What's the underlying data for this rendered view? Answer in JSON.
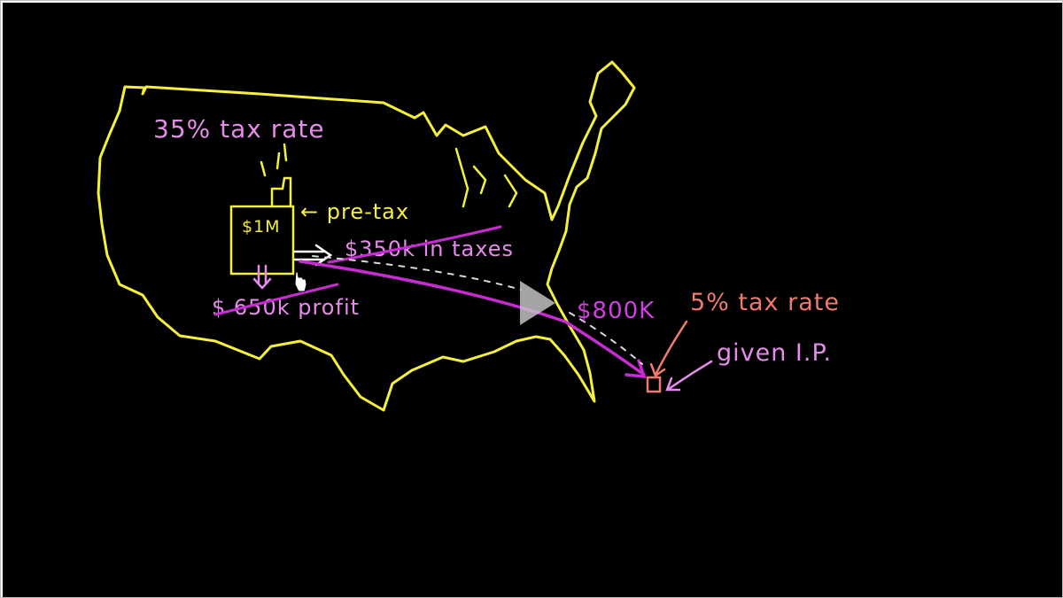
{
  "video": {
    "control": {
      "play_icon": "play-icon",
      "play_label": "Play video"
    }
  },
  "board": {
    "us_rate": "35% tax rate",
    "company_amount": "$1M",
    "pre_tax": "← pre-tax",
    "taxes": "$350k in taxes",
    "profit": "$ 650k profit",
    "transfer": "$800K",
    "low_rate": "5% tax rate",
    "given_ip": "given I.P."
  },
  "colors": {
    "map_outline": "#f5f03c",
    "note_pink": "#e58ce8",
    "arrow_magenta": "#c72bd1",
    "transfer_magenta": "#d23fe0",
    "salmon": "#ef7a6e",
    "play_icon": "#c8c8c8"
  }
}
